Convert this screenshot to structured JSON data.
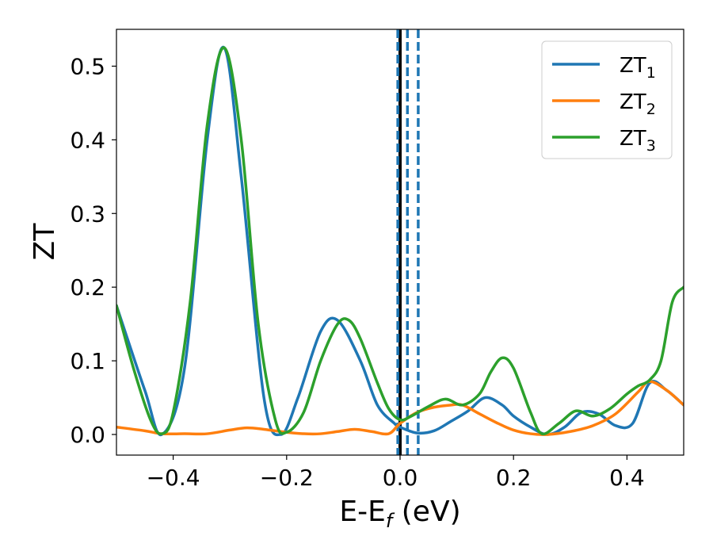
{
  "chart_data": {
    "type": "line",
    "xlabel": "E-E",
    "xlabel_sub": "f",
    "xlabel_unit": "(eV)",
    "ylabel": "ZT",
    "xlim": [
      -0.5,
      0.5
    ],
    "ylim": [
      -0.028,
      0.55
    ],
    "xticks": [
      -0.4,
      -0.2,
      0.0,
      0.2,
      0.4
    ],
    "xtick_labels": [
      "−0.4",
      "−0.2",
      "0.0",
      "0.2",
      "0.4"
    ],
    "yticks": [
      0.0,
      0.1,
      0.2,
      0.3,
      0.4,
      0.5
    ],
    "ytick_labels": [
      "0.0",
      "0.1",
      "0.2",
      "0.3",
      "0.4",
      "0.5"
    ],
    "grid": false,
    "legend_position": "top-right",
    "vertical_lines": [
      {
        "x": 0.0,
        "style": "solid",
        "color": "#000000"
      },
      {
        "x": -0.004,
        "style": "dashed",
        "color": "#1f77b4"
      },
      {
        "x": 0.013,
        "style": "dashed",
        "color": "#1f77b4"
      },
      {
        "x": 0.032,
        "style": "dashed",
        "color": "#1f77b4"
      }
    ],
    "series": [
      {
        "name": "ZT",
        "subscript": "1",
        "color": "#1f77b4",
        "x": [
          -0.5,
          -0.45,
          -0.42,
          -0.38,
          -0.34,
          -0.31,
          -0.28,
          -0.24,
          -0.21,
          -0.18,
          -0.14,
          -0.11,
          -0.07,
          -0.04,
          -0.01,
          0.0,
          0.03,
          0.06,
          0.09,
          0.12,
          0.15,
          0.18,
          0.2,
          0.23,
          0.26,
          0.29,
          0.32,
          0.35,
          0.38,
          0.41,
          0.44,
          0.47,
          0.5
        ],
        "y": [
          0.175,
          0.06,
          0.0,
          0.09,
          0.4,
          0.525,
          0.35,
          0.05,
          0.0,
          0.05,
          0.14,
          0.155,
          0.1,
          0.04,
          0.015,
          0.01,
          0.002,
          0.005,
          0.018,
          0.032,
          0.05,
          0.04,
          0.025,
          0.01,
          0.0,
          0.01,
          0.03,
          0.028,
          0.012,
          0.015,
          0.07,
          0.06,
          0.04
        ]
      },
      {
        "name": "ZT",
        "subscript": "2",
        "color": "#ff7f0e",
        "x": [
          -0.5,
          -0.45,
          -0.42,
          -0.38,
          -0.34,
          -0.3,
          -0.27,
          -0.24,
          -0.2,
          -0.17,
          -0.14,
          -0.11,
          -0.08,
          -0.05,
          -0.02,
          0.0,
          0.03,
          0.06,
          0.09,
          0.11,
          0.14,
          0.17,
          0.2,
          0.23,
          0.26,
          0.3,
          0.34,
          0.38,
          0.42,
          0.44,
          0.47,
          0.5
        ],
        "y": [
          0.01,
          0.005,
          0.001,
          0.001,
          0.001,
          0.006,
          0.009,
          0.007,
          0.003,
          0.001,
          0.001,
          0.004,
          0.007,
          0.004,
          0.001,
          0.015,
          0.03,
          0.037,
          0.04,
          0.04,
          0.028,
          0.016,
          0.006,
          0.001,
          0.0,
          0.004,
          0.012,
          0.028,
          0.058,
          0.072,
          0.06,
          0.04
        ]
      },
      {
        "name": "ZT",
        "subscript": "3",
        "color": "#2ca02c",
        "x": [
          -0.5,
          -0.47,
          -0.44,
          -0.42,
          -0.4,
          -0.37,
          -0.34,
          -0.31,
          -0.28,
          -0.25,
          -0.22,
          -0.2,
          -0.17,
          -0.14,
          -0.11,
          -0.09,
          -0.07,
          -0.04,
          -0.02,
          0.0,
          0.02,
          0.05,
          0.08,
          0.11,
          0.14,
          0.16,
          0.18,
          0.2,
          0.23,
          0.25,
          0.28,
          0.31,
          0.34,
          0.37,
          0.4,
          0.42,
          0.44,
          0.46,
          0.48,
          0.5
        ],
        "y": [
          0.175,
          0.09,
          0.02,
          0.001,
          0.03,
          0.18,
          0.42,
          0.525,
          0.4,
          0.15,
          0.02,
          0.003,
          0.03,
          0.1,
          0.15,
          0.155,
          0.13,
          0.07,
          0.035,
          0.02,
          0.025,
          0.038,
          0.048,
          0.04,
          0.055,
          0.085,
          0.104,
          0.09,
          0.03,
          0.001,
          0.015,
          0.032,
          0.025,
          0.035,
          0.055,
          0.066,
          0.074,
          0.1,
          0.18,
          0.2
        ]
      }
    ]
  }
}
